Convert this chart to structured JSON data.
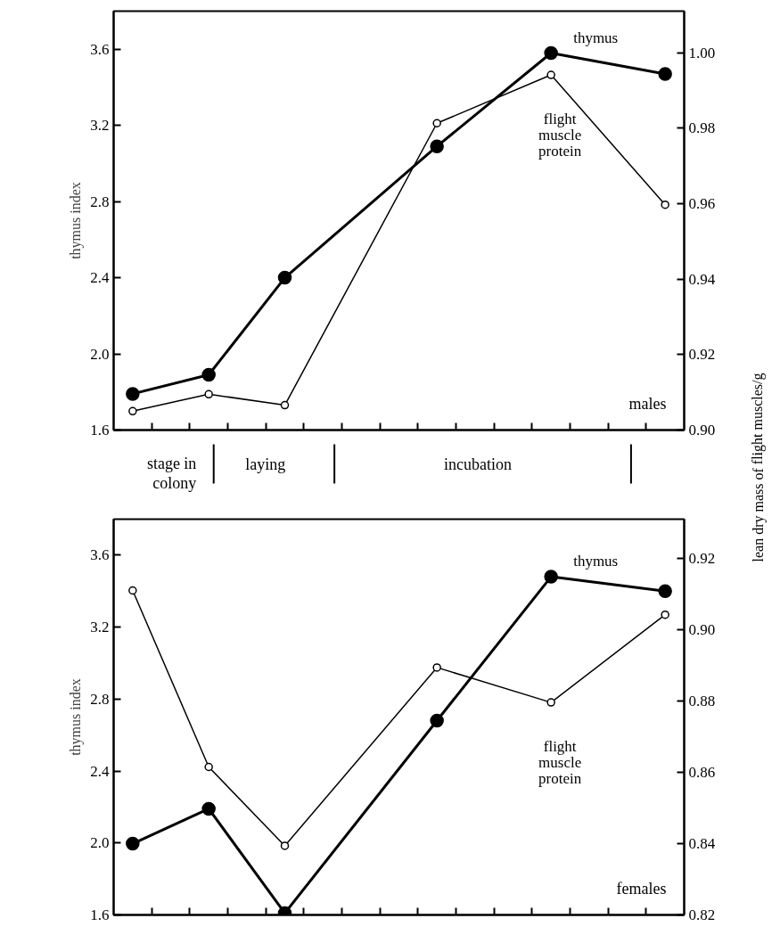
{
  "chart_data": [
    {
      "type": "line",
      "ylabel": "thymus index",
      "y2label": "lean dry mass of flight muscles/g",
      "annotations": [
        "males"
      ],
      "categories": [
        null,
        null,
        null,
        null,
        null,
        null,
        null,
        null,
        null,
        null,
        null,
        null,
        null,
        null,
        null
      ],
      "ylim": [
        1.6,
        3.8
      ],
      "yticks": [
        {
          "value": 1.6,
          "label": "1.6"
        },
        {
          "value": 2.0,
          "label": "2.0"
        },
        {
          "value": 2.4,
          "label": "2.4"
        },
        {
          "value": 2.8,
          "label": "2.8"
        },
        {
          "value": 3.2,
          "label": "3.2"
        },
        {
          "value": 3.6,
          "label": "3.6"
        }
      ],
      "y2lim": [
        0.9,
        1.011
      ],
      "y2ticks": [
        {
          "value": 0.9,
          "label": "0.90"
        },
        {
          "value": 0.92,
          "label": "0.92"
        },
        {
          "value": 0.94,
          "label": "0.94"
        },
        {
          "value": 0.96,
          "label": "0.96"
        },
        {
          "value": 0.98,
          "label": "0.98"
        },
        {
          "value": 1.0,
          "label": "1.00"
        }
      ],
      "marker": "circle",
      "grid": false,
      "series": [
        {
          "name": "thymus",
          "color": "#000000",
          "values": [
            1.79,
            null,
            1.89,
            null,
            2.4,
            null,
            null,
            null,
            3.09,
            null,
            null,
            3.58,
            null,
            null,
            3.47
          ]
        },
        {
          "name": "flight muscle protein",
          "color": "#000000",
          "axis": "y2",
          "values": [
            0.905,
            null,
            0.9095,
            null,
            0.9066,
            null,
            null,
            null,
            0.9813,
            null,
            null,
            0.9941,
            null,
            null,
            0.9597
          ]
        }
      ]
    },
    {
      "type": "other",
      "annotations": [
        "stage in colony",
        "laying",
        "incubation"
      ]
    },
    {
      "type": "line",
      "ylabel": "thymus index",
      "annotations": [
        "females"
      ],
      "categories": [
        null,
        null,
        null,
        null,
        null,
        null,
        null,
        null,
        null,
        null,
        null,
        null,
        null,
        null,
        null
      ],
      "ylim": [
        1.6,
        3.8
      ],
      "yticks": [
        {
          "value": 1.6,
          "label": "1.6"
        },
        {
          "value": 2.0,
          "label": "2.0"
        },
        {
          "value": 2.4,
          "label": "2.4"
        },
        {
          "value": 2.8,
          "label": "2.8"
        },
        {
          "value": 3.2,
          "label": "3.2"
        },
        {
          "value": 3.6,
          "label": "3.6"
        }
      ],
      "y2lim": [
        0.82,
        0.931
      ],
      "y2ticks": [
        {
          "value": 0.82,
          "label": "0.82"
        },
        {
          "value": 0.84,
          "label": "0.84"
        },
        {
          "value": 0.86,
          "label": "0.86"
        },
        {
          "value": 0.88,
          "label": "0.88"
        },
        {
          "value": 0.9,
          "label": "0.90"
        },
        {
          "value": 0.92,
          "label": "0.92"
        }
      ],
      "marker": "circle",
      "grid": false,
      "series": [
        {
          "name": "thymus",
          "color": "#000000",
          "values": [
            1.996,
            null,
            2.19,
            null,
            1.61,
            null,
            null,
            null,
            2.68,
            null,
            null,
            3.48,
            null,
            null,
            3.4
          ]
        },
        {
          "name": "flight muscle protein",
          "color": "#000000",
          "axis": "y2",
          "values": [
            0.911,
            null,
            0.8615,
            null,
            0.8394,
            null,
            null,
            null,
            0.8894,
            null,
            null,
            0.8796,
            null,
            null,
            0.9042
          ]
        }
      ]
    }
  ]
}
